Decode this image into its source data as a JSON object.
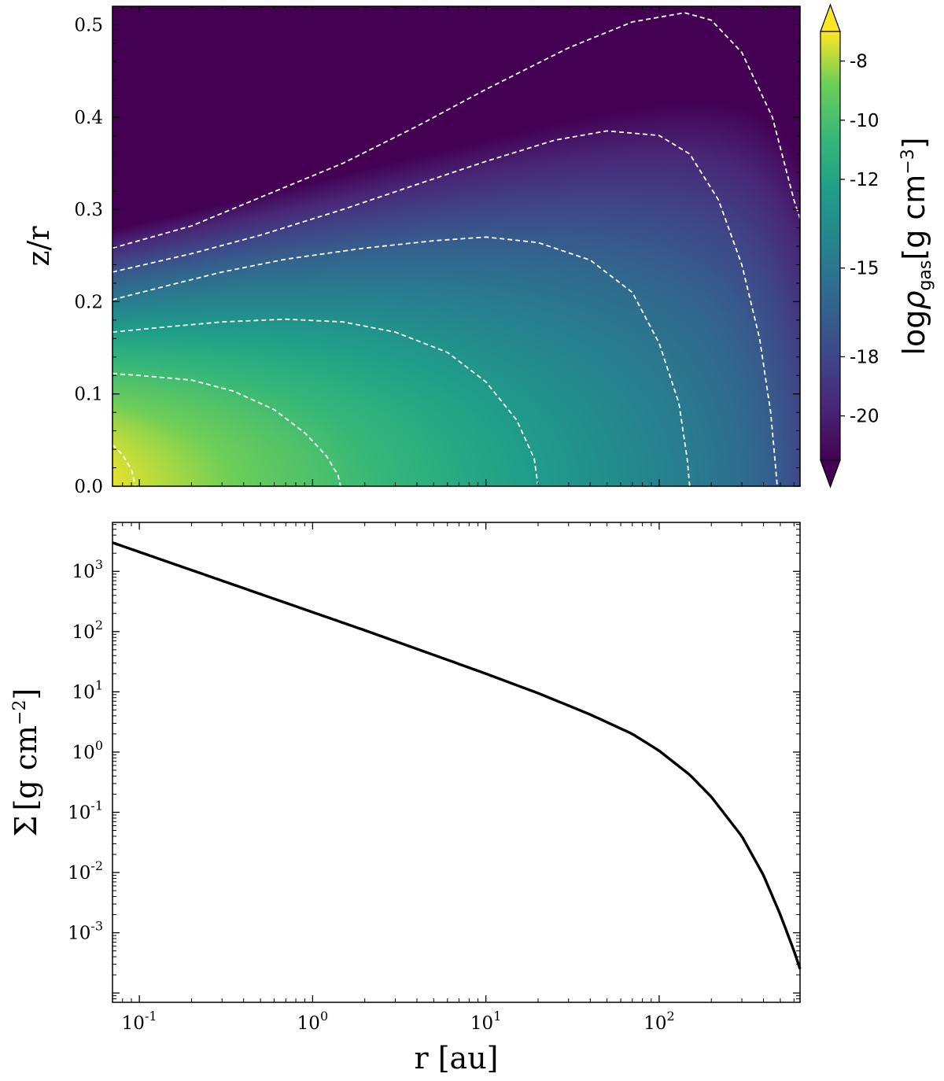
{
  "chart_data": [
    {
      "type": "heatmap",
      "title": "",
      "xlabel": "",
      "ylabel": "z/r",
      "xscale": "log",
      "xlim": [
        0.07,
        650
      ],
      "ylim": [
        0.0,
        0.52
      ],
      "y_ticks": [
        {
          "value": 0.0,
          "label": "0.0"
        },
        {
          "value": 0.1,
          "label": "0.1"
        },
        {
          "value": 0.2,
          "label": "0.2"
        },
        {
          "value": 0.3,
          "label": "0.3"
        },
        {
          "value": 0.4,
          "label": "0.4"
        },
        {
          "value": 0.5,
          "label": "0.5"
        }
      ],
      "colormap": "viridis",
      "colorbar": {
        "label_main": "log",
        "label_rho": "ρ",
        "label_sub": "gas",
        "label_unit_open": "[g cm",
        "label_exp": "−3",
        "label_unit_close": "]",
        "range": [
          -21.5,
          -7
        ],
        "extend": "both",
        "ticks": [
          {
            "value": -8,
            "label": "-8"
          },
          {
            "value": -10,
            "label": "-10"
          },
          {
            "value": -12,
            "label": "-12"
          },
          {
            "value": -15,
            "label": "-15"
          },
          {
            "value": -18,
            "label": "-18"
          },
          {
            "value": -20,
            "label": "-20"
          }
        ]
      },
      "contours": {
        "style": "white dashed",
        "levels": [
          {
            "name": "contour-1",
            "points": [
              [
                0.07,
                0.045
              ],
              [
                0.08,
                0.034
              ],
              [
                0.09,
                0.018
              ],
              [
                0.095,
                0.0
              ]
            ]
          },
          {
            "name": "contour-2",
            "points": [
              [
                0.07,
                0.122
              ],
              [
                0.1,
                0.12
              ],
              [
                0.2,
                0.115
              ],
              [
                0.35,
                0.103
              ],
              [
                0.6,
                0.083
              ],
              [
                0.9,
                0.058
              ],
              [
                1.2,
                0.033
              ],
              [
                1.4,
                0.012
              ],
              [
                1.45,
                0.0
              ]
            ]
          },
          {
            "name": "contour-3",
            "points": [
              [
                0.07,
                0.167
              ],
              [
                0.15,
                0.173
              ],
              [
                0.3,
                0.178
              ],
              [
                0.7,
                0.181
              ],
              [
                1.5,
                0.178
              ],
              [
                3,
                0.167
              ],
              [
                6,
                0.145
              ],
              [
                10,
                0.113
              ],
              [
                15,
                0.072
              ],
              [
                19,
                0.03
              ],
              [
                20,
                0.0
              ]
            ]
          },
          {
            "name": "contour-4",
            "points": [
              [
                0.07,
                0.202
              ],
              [
                0.15,
                0.218
              ],
              [
                0.3,
                0.232
              ],
              [
                0.7,
                0.246
              ],
              [
                2,
                0.258
              ],
              [
                5,
                0.266
              ],
              [
                10,
                0.27
              ],
              [
                20,
                0.264
              ],
              [
                40,
                0.245
              ],
              [
                70,
                0.21
              ],
              [
                100,
                0.155
              ],
              [
                130,
                0.09
              ],
              [
                145,
                0.03
              ],
              [
                150,
                0.0
              ]
            ]
          },
          {
            "name": "contour-5",
            "points": [
              [
                0.07,
                0.232
              ],
              [
                0.2,
                0.252
              ],
              [
                0.5,
                0.272
              ],
              [
                1.5,
                0.3
              ],
              [
                4,
                0.327
              ],
              [
                10,
                0.352
              ],
              [
                25,
                0.375
              ],
              [
                50,
                0.385
              ],
              [
                100,
                0.38
              ],
              [
                150,
                0.36
              ],
              [
                220,
                0.31
              ],
              [
                300,
                0.24
              ],
              [
                380,
                0.16
              ],
              [
                440,
                0.08
              ],
              [
                470,
                0.02
              ],
              [
                480,
                0.0
              ]
            ]
          },
          {
            "name": "contour-6",
            "points": [
              [
                0.07,
                0.258
              ],
              [
                0.2,
                0.282
              ],
              [
                0.5,
                0.313
              ],
              [
                1.5,
                0.35
              ],
              [
                4,
                0.39
              ],
              [
                10,
                0.43
              ],
              [
                30,
                0.475
              ],
              [
                70,
                0.503
              ],
              [
                140,
                0.513
              ],
              [
                200,
                0.505
              ],
              [
                300,
                0.47
              ],
              [
                450,
                0.4
              ],
              [
                600,
                0.31
              ],
              [
                650,
                0.29
              ]
            ]
          }
        ]
      }
    },
    {
      "type": "line",
      "title": "",
      "xlabel": "r [au]",
      "ylabel_main": "Σ",
      "ylabel_unit_open": "[g cm",
      "ylabel_exp": "−2",
      "ylabel_unit_close": "]",
      "xscale": "log",
      "yscale": "log",
      "xlim": [
        0.07,
        650
      ],
      "ylim": [
        7e-05,
        6500
      ],
      "x_ticks": [
        {
          "value": 0.1,
          "base": "10",
          "exp": "-1"
        },
        {
          "value": 1,
          "base": "10",
          "exp": "0"
        },
        {
          "value": 10,
          "base": "10",
          "exp": "1"
        },
        {
          "value": 100,
          "base": "10",
          "exp": "2"
        }
      ],
      "y_ticks": [
        {
          "value": 1000,
          "base": "10",
          "exp": "3"
        },
        {
          "value": 100,
          "base": "10",
          "exp": "2"
        },
        {
          "value": 10,
          "base": "10",
          "exp": "1"
        },
        {
          "value": 1,
          "base": "10",
          "exp": "0"
        },
        {
          "value": 0.1,
          "base": "10",
          "exp": "-1"
        },
        {
          "value": 0.01,
          "base": "10",
          "exp": "-2"
        },
        {
          "value": 0.001,
          "base": "10",
          "exp": "-3"
        }
      ],
      "series": [
        {
          "color": "#000000",
          "x": [
            0.07,
            0.1,
            0.2,
            0.5,
            1,
            2,
            5,
            10,
            20,
            40,
            70,
            100,
            150,
            200,
            300,
            400,
            500,
            600,
            650
          ],
          "y": [
            3000,
            2100,
            1050,
            420,
            210,
            105,
            41,
            20,
            9.5,
            4.2,
            2.0,
            1.05,
            0.42,
            0.18,
            0.04,
            0.009,
            0.002,
            0.0005,
            0.00025
          ]
        }
      ]
    }
  ]
}
